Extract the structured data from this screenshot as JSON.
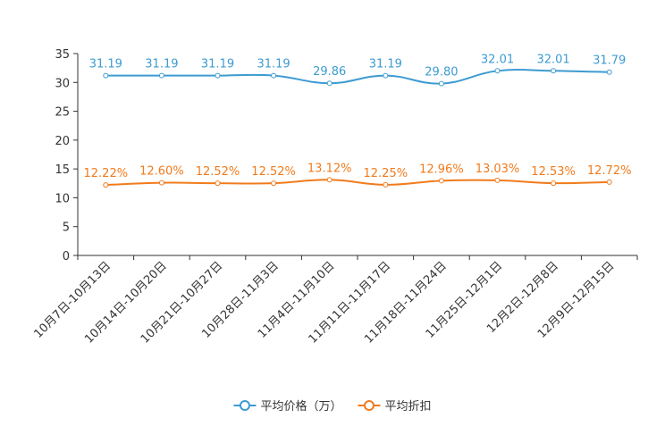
{
  "chart_data": {
    "type": "line",
    "categories": [
      "10月7日-10月13日",
      "10月14日-10月20日",
      "10月21日-10月27日",
      "10月28日-11月3日",
      "11月4日-11月10日",
      "11月11日-11月17日",
      "11月18日-11月24日",
      "11月25日-12月1日",
      "12月2日-12月8日",
      "12月9日-12月15日"
    ],
    "ylim": [
      0,
      35
    ],
    "yticks": [
      0,
      5,
      10,
      15,
      20,
      25,
      30,
      35
    ],
    "series": [
      {
        "name": "平均价格（万）",
        "color": "#3d9bd1",
        "values": [
          31.19,
          31.19,
          31.19,
          31.19,
          29.86,
          31.19,
          29.8,
          32.01,
          32.01,
          31.79
        ],
        "labels": [
          "31.19",
          "31.19",
          "31.19",
          "31.19",
          "29.86",
          "31.19",
          "29.80",
          "32.01",
          "32.01",
          "31.79"
        ]
      },
      {
        "name": "平均折扣",
        "color": "#f07b1d",
        "values": [
          12.22,
          12.6,
          12.52,
          12.52,
          13.12,
          12.25,
          12.96,
          13.03,
          12.53,
          12.72
        ],
        "labels": [
          "12.22%",
          "12.60%",
          "12.52%",
          "12.52%",
          "13.12%",
          "12.25%",
          "12.96%",
          "13.03%",
          "12.53%",
          "12.72%"
        ]
      }
    ],
    "legend_position": "bottom-center"
  }
}
